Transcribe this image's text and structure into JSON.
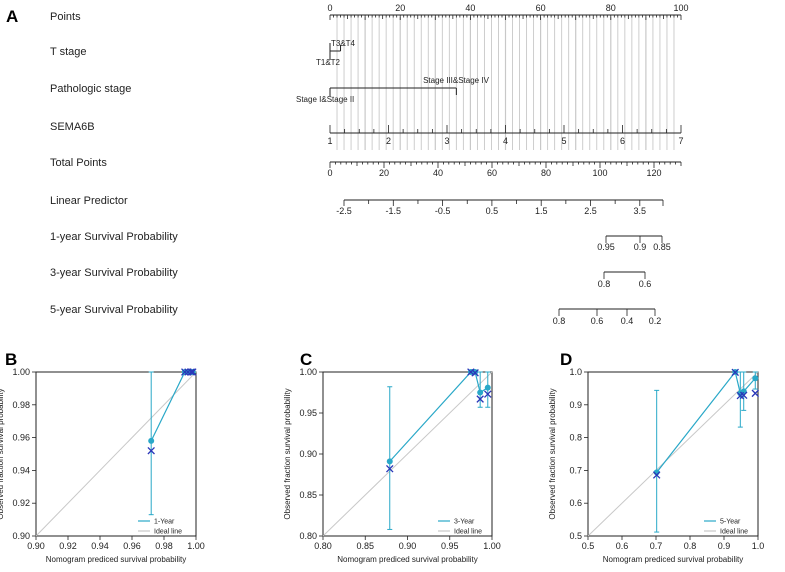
{
  "panel_letters": {
    "A": "A",
    "B": "B",
    "C": "C",
    "D": "D"
  },
  "chart_data": [
    {
      "panel": "A",
      "type": "nomogram",
      "rows": [
        {
          "label": "Points",
          "kind": "scale",
          "min": 0,
          "max": 100,
          "labels": [
            "0",
            "20",
            "40",
            "60",
            "80",
            "100"
          ]
        },
        {
          "label": "T stage",
          "kind": "categorical",
          "items": [
            {
              "text": "T3&T4",
              "points": 3
            },
            {
              "text": "T1&T2",
              "points": 0
            }
          ]
        },
        {
          "label": "Pathologic stage",
          "kind": "categorical",
          "items": [
            {
              "text": "Stage III&Stage IV",
              "points": 36
            },
            {
              "text": "Stage I&Stage II",
              "points": 0
            }
          ]
        },
        {
          "label": "SEMA6B",
          "kind": "continuous",
          "ticks": [
            "1",
            "2",
            "3",
            "4",
            "5",
            "6",
            "7"
          ]
        },
        {
          "label": "Total Points",
          "kind": "scale",
          "min": 0,
          "max": 130,
          "labels": [
            "0",
            "20",
            "40",
            "60",
            "80",
            "100",
            "120"
          ]
        },
        {
          "label": "Linear Predictor",
          "kind": "scale",
          "labels": [
            "-2.5",
            "-1.5",
            "-0.5",
            "0.5",
            "1.5",
            "2.5",
            "3.5"
          ]
        },
        {
          "label": "1-year Survival Probability",
          "kind": "probability",
          "labels": [
            "0.95",
            "0.9",
            "0.85"
          ]
        },
        {
          "label": "3-year Survival Probability",
          "kind": "probability",
          "labels": [
            "0.8",
            "0.6"
          ]
        },
        {
          "label": "5-year Survival Probability",
          "kind": "probability",
          "labels": [
            "0.8",
            "0.6",
            "0.4",
            "0.2"
          ]
        }
      ]
    },
    {
      "panel": "B",
      "type": "scatter",
      "xlabel": "Nomogram prediced survival probability",
      "ylabel": "Observed fraction survival probability",
      "xlim": [
        0.9,
        1.0
      ],
      "ylim": [
        0.9,
        1.0
      ],
      "xticks": [
        "0.90",
        "0.92",
        "0.94",
        "0.96",
        "0.98",
        "1.00"
      ],
      "yticks": [
        "0.90",
        "0.92",
        "0.94",
        "0.96",
        "0.98",
        "1.00"
      ],
      "series": [
        {
          "name": "1-Year",
          "x": [
            0.972,
            0.993,
            0.995,
            0.997,
            0.998
          ],
          "y": [
            0.958,
            1.0,
            1.0,
            1.0,
            1.0
          ],
          "ci_low": [
            0.913,
            1.0,
            1.0,
            1.0,
            1.0
          ],
          "ci_high": [
            1.0,
            1.0,
            1.0,
            1.0,
            1.0
          ],
          "corrected": [
            0.952,
            1.0,
            1.0,
            1.0,
            1.0
          ]
        },
        {
          "name": "Ideal line"
        }
      ]
    },
    {
      "panel": "C",
      "type": "scatter",
      "xlabel": "Nomogram prediced survival probability",
      "ylabel": "Observed fraction survival probability",
      "xlim": [
        0.8,
        1.0
      ],
      "ylim": [
        0.8,
        1.0
      ],
      "xticks": [
        "0.80",
        "0.85",
        "0.90",
        "0.95",
        "1.00"
      ],
      "yticks": [
        "0.80",
        "0.85",
        "0.90",
        "0.95",
        "1.00"
      ],
      "series": [
        {
          "name": "3-Year",
          "x": [
            0.879,
            0.975,
            0.98,
            0.986,
            0.995
          ],
          "y": [
            0.891,
            1.0,
            1.0,
            0.975,
            0.981
          ],
          "ci_low": [
            0.808,
            1.0,
            1.0,
            0.957,
            0.957
          ],
          "ci_high": [
            0.982,
            1.0,
            1.0,
            1.0,
            1.0
          ],
          "corrected": [
            0.882,
            1.0,
            0.999,
            0.967,
            0.973
          ]
        },
        {
          "name": "Ideal line"
        }
      ]
    },
    {
      "panel": "D",
      "type": "scatter",
      "xlabel": "Nomogram prediced survival probability",
      "ylabel": "Observed fraction survival probability",
      "xlim": [
        0.5,
        1.0
      ],
      "ylim": [
        0.5,
        1.0
      ],
      "xticks": [
        "0.5",
        "0.6",
        "0.7",
        "0.8",
        "0.9",
        "1.0"
      ],
      "yticks": [
        "0.5",
        "0.6",
        "0.7",
        "0.8",
        "0.9",
        "1.0"
      ],
      "series": [
        {
          "name": "5-Year",
          "x": [
            0.702,
            0.933,
            0.948,
            0.958,
            0.992
          ],
          "y": [
            0.694,
            1.0,
            0.935,
            0.941,
            0.981
          ],
          "ci_low": [
            0.512,
            1.0,
            0.832,
            0.883,
            0.948
          ],
          "ci_high": [
            0.944,
            1.0,
            1.0,
            1.0,
            1.0
          ],
          "corrected": [
            0.686,
            0.999,
            0.928,
            0.929,
            0.935
          ]
        },
        {
          "name": "Ideal line"
        }
      ]
    }
  ],
  "colors": {
    "curve": "#29a8c8",
    "marker": "#2a36b8",
    "ideal": "#c8c8c8",
    "axis": "#222222",
    "grid": "#c8c8c8"
  }
}
